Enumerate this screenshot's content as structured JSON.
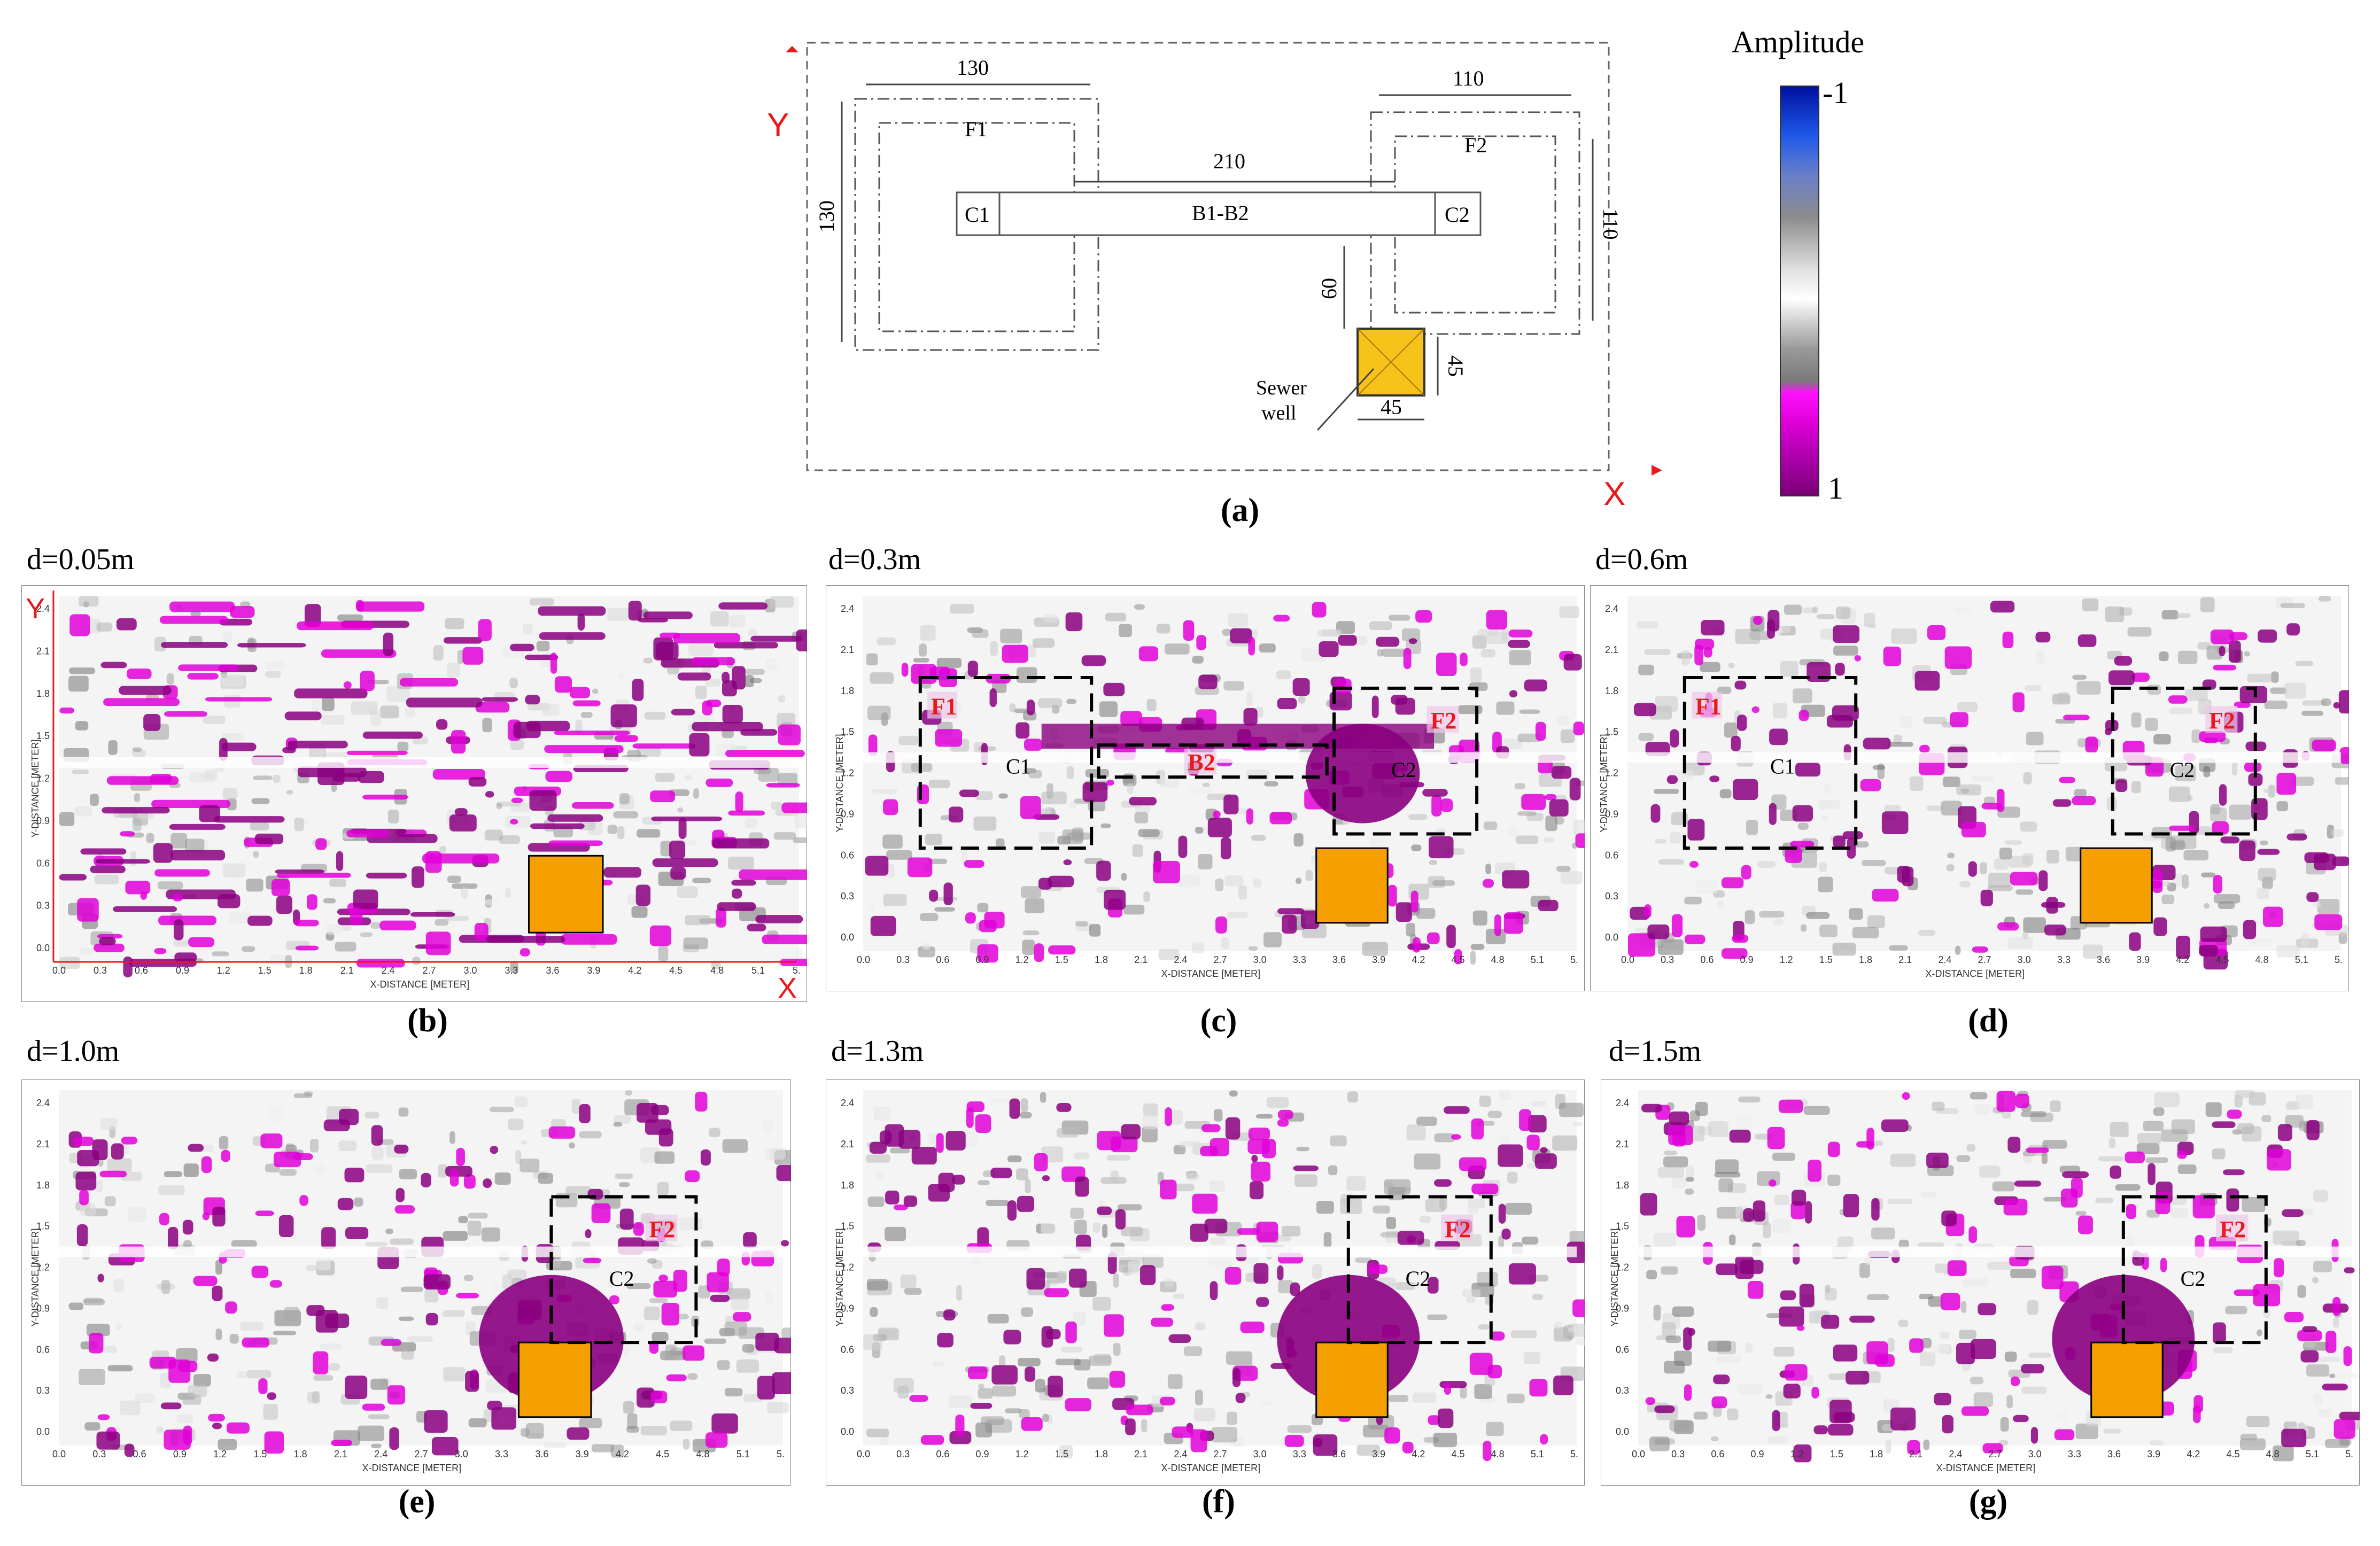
{
  "colors": {
    "magenta": "#e000d8",
    "purple": "#8a0080",
    "gray": "#9a9a9a",
    "orange": "#f5a000",
    "sewer_yellow": "#f7c21a",
    "red": "#e8191b",
    "blue": "#1030c0"
  },
  "plan": {
    "axis_x": "X",
    "axis_y": "Y",
    "dim_f1_w": "130",
    "dim_f1_h": "130",
    "dim_f2_w": "110",
    "dim_f2_h": "110",
    "dim_beam": "210",
    "dim_60": "60",
    "dim_well_w": "45",
    "dim_well_h": "45",
    "label_f1": "F1",
    "label_f2": "F2",
    "label_c1": "C1",
    "label_c2": "C2",
    "label_beam": "B1-B2",
    "sewer_line1": "Sewer",
    "sewer_line2": "well",
    "caption": "(a)"
  },
  "colorbar": {
    "title": "Amplitude",
    "max_label": "-1",
    "min_label": "1"
  },
  "axis_text": {
    "xlabel": "X-DISTANCE [METER]",
    "ylabel": "Y-DISTANCE [METER]",
    "xticks": [
      "0.0",
      "0.3",
      "0.6",
      "0.9",
      "1.2",
      "1.5",
      "1.8",
      "2.1",
      "2.4",
      "2.7",
      "3.0",
      "3.3",
      "3.6",
      "3.9",
      "4.2",
      "4.5",
      "4.8",
      "5.1",
      "5."
    ],
    "yticks": [
      "2.4",
      "2.1",
      "1.8",
      "1.5",
      "1.2",
      "0.9",
      "0.6",
      "0.3",
      "0.0"
    ]
  },
  "panels": {
    "b": {
      "depth": "d=0.05m",
      "caption": "(b)",
      "axis_x": "X",
      "axis_y": "Y"
    },
    "c": {
      "depth": "d=0.3m",
      "caption": "(c)",
      "f1": "F1",
      "c1": "C1",
      "b2": "B2",
      "c2": "C2",
      "f2": "F2"
    },
    "d": {
      "depth": "d=0.6m",
      "caption": "(d)",
      "f1": "F1",
      "c1": "C1",
      "c2": "C2",
      "f2": "F2"
    },
    "e": {
      "depth": "d=1.0m",
      "caption": "(e)",
      "c2": "C2",
      "f2": "F2"
    },
    "f": {
      "depth": "d=1.3m",
      "caption": "(f)",
      "c2": "C2",
      "f2": "F2"
    },
    "g": {
      "depth": "d=1.5m",
      "caption": "(g)",
      "c2": "C2",
      "f2": "F2"
    }
  }
}
